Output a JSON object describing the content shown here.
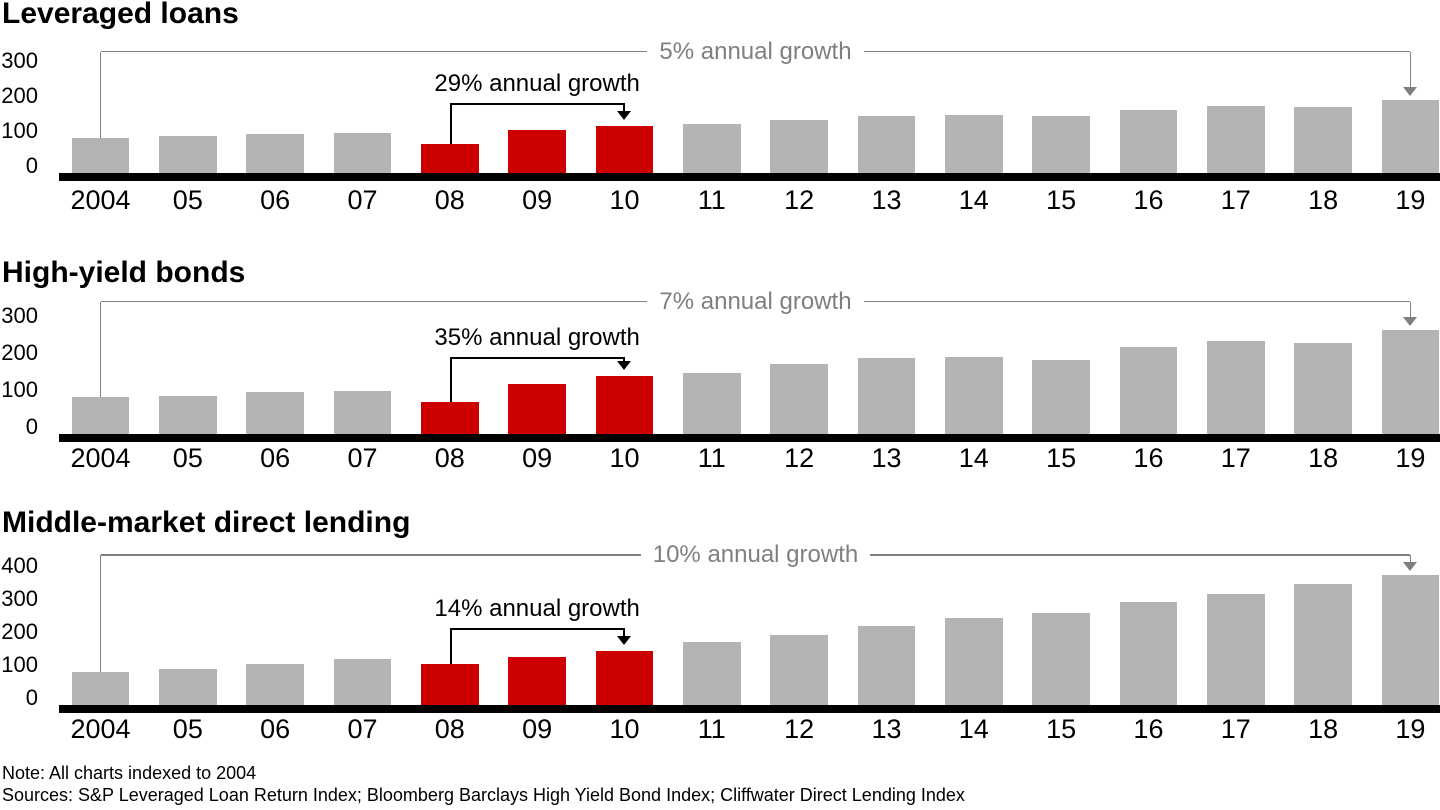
{
  "chart_data": [
    {
      "type": "bar",
      "title": "Leveraged loans",
      "categories": [
        "2004",
        "05",
        "06",
        "07",
        "08",
        "09",
        "10",
        "11",
        "12",
        "13",
        "14",
        "15",
        "16",
        "17",
        "18",
        "19"
      ],
      "values": [
        100,
        105,
        112,
        114,
        81,
        123,
        134,
        138,
        152,
        162,
        165,
        163,
        179,
        190,
        189,
        208
      ],
      "ylim": [
        0,
        300
      ],
      "yticks": [
        0,
        100,
        200,
        300
      ],
      "highlight_categories": [
        "08",
        "09",
        "10"
      ],
      "overall_growth_label": "5% annual growth",
      "overall_growth_from": "2004",
      "overall_growth_to": "19",
      "crisis_growth_label": "29% annual growth",
      "crisis_growth_from": "08",
      "crisis_growth_to": "10",
      "grid": false,
      "legend": "none"
    },
    {
      "type": "bar",
      "title": "High-yield bonds",
      "categories": [
        "2004",
        "05",
        "06",
        "07",
        "08",
        "09",
        "10",
        "11",
        "12",
        "13",
        "14",
        "15",
        "16",
        "17",
        "18",
        "19"
      ],
      "values": [
        100,
        103,
        115,
        117,
        86,
        137,
        157,
        165,
        191,
        205,
        210,
        201,
        235,
        253,
        247,
        283
      ],
      "ylim": [
        0,
        300
      ],
      "yticks": [
        0,
        100,
        200,
        300
      ],
      "highlight_categories": [
        "08",
        "09",
        "10"
      ],
      "overall_growth_label": "7% annual growth",
      "overall_growth_from": "2004",
      "overall_growth_to": "19",
      "crisis_growth_label": "35% annual growth",
      "crisis_growth_from": "08",
      "crisis_growth_to": "10",
      "grid": false,
      "legend": "none"
    },
    {
      "type": "bar",
      "title": "Middle-market direct lending",
      "categories": [
        "2004",
        "05",
        "06",
        "07",
        "08",
        "09",
        "10",
        "11",
        "12",
        "13",
        "14",
        "15",
        "16",
        "17",
        "18",
        "19"
      ],
      "values": [
        100,
        108,
        124,
        138,
        125,
        146,
        162,
        190,
        212,
        239,
        263,
        279,
        312,
        336,
        367,
        394
      ],
      "ylim": [
        0,
        400
      ],
      "yticks": [
        0,
        100,
        200,
        300,
        400
      ],
      "highlight_categories": [
        "08",
        "09",
        "10"
      ],
      "overall_growth_label": "10% annual growth",
      "overall_growth_from": "2004",
      "overall_growth_to": "19",
      "crisis_growth_label": "14% annual growth",
      "crisis_growth_from": "08",
      "crisis_growth_to": "10",
      "grid": false,
      "legend": "none"
    }
  ],
  "footer": {
    "note": "Note: All charts indexed to 2004",
    "sources": "Sources: S&P Leveraged Loan Return Index; Bloomberg Barclays High Yield Bond Index; Cliffwater Direct Lending Index"
  },
  "colors": {
    "bar": "#b4b4b4",
    "highlight": "#cc0000",
    "axis": "#000000",
    "annotation_gray": "#7f7f7f",
    "text": "#000000"
  }
}
